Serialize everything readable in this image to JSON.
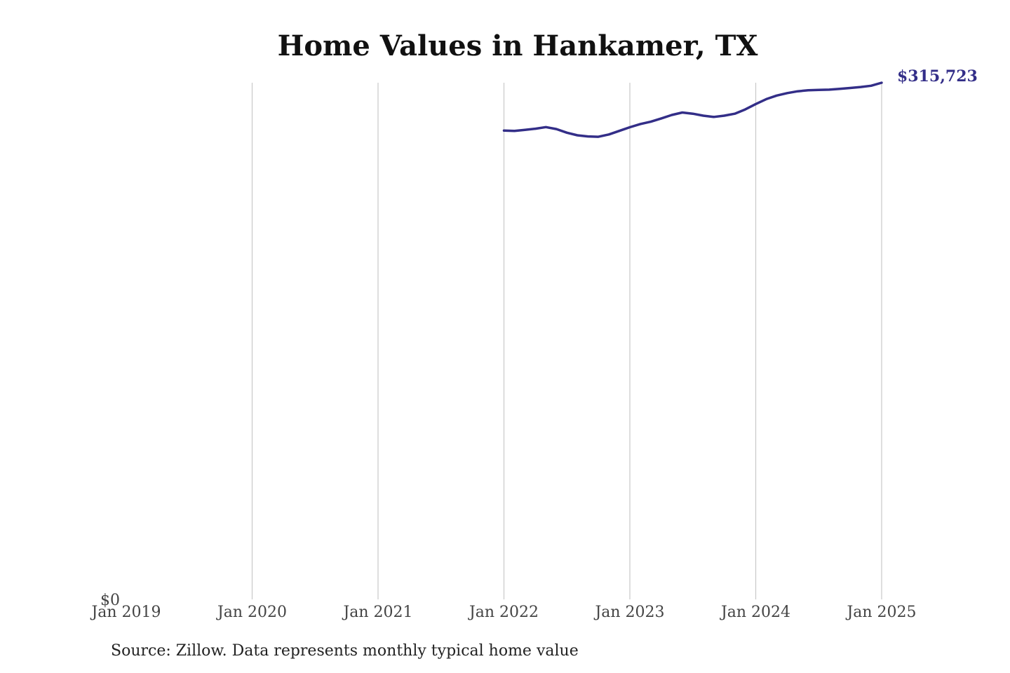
{
  "title": "Home Values in Hankamer, TX",
  "source": "Source: Zillow. Data represents monthly typical home value",
  "colors": {
    "line": "#332e88",
    "grid": "#c8c8c8",
    "end_label": "#332e88"
  },
  "chart_data": {
    "type": "line",
    "title": "Home Values in Hankamer, TX",
    "xlabel": "",
    "ylabel": "",
    "x_ticks": [
      "Jan 2019",
      "Jan 2020",
      "Jan 2021",
      "Jan 2022",
      "Jan 2023",
      "Jan 2024",
      "Jan 2025"
    ],
    "y_ticks": [
      {
        "value": 0,
        "label": "$0"
      }
    ],
    "xlim": [
      "2019-01",
      "2025-01"
    ],
    "ylim": [
      0,
      315723
    ],
    "grid": "vertical",
    "end_label": "$315,723",
    "series": [
      {
        "x": [
          "2022-01",
          "2022-02",
          "2022-03",
          "2022-04",
          "2022-05",
          "2022-06",
          "2022-07",
          "2022-08",
          "2022-09",
          "2022-10",
          "2022-11",
          "2022-12",
          "2023-01",
          "2023-02",
          "2023-03",
          "2023-04",
          "2023-05",
          "2023-06",
          "2023-07",
          "2023-08",
          "2023-09",
          "2023-10",
          "2023-11",
          "2023-12",
          "2024-01",
          "2024-02",
          "2024-03",
          "2024-04",
          "2024-05",
          "2024-06",
          "2024-07",
          "2024-08",
          "2024-09",
          "2024-10",
          "2024-11",
          "2024-12",
          "2025-01"
        ],
        "y": [
          286500,
          286300,
          286900,
          287600,
          288600,
          287400,
          285200,
          283600,
          282900,
          282700,
          284100,
          286300,
          288500,
          290500,
          291900,
          293900,
          296000,
          297500,
          296800,
          295600,
          294800,
          295600,
          296800,
          299400,
          302700,
          305700,
          307900,
          309400,
          310500,
          311100,
          311300,
          311500,
          312000,
          312500,
          313100,
          313900,
          315723
        ]
      }
    ]
  }
}
